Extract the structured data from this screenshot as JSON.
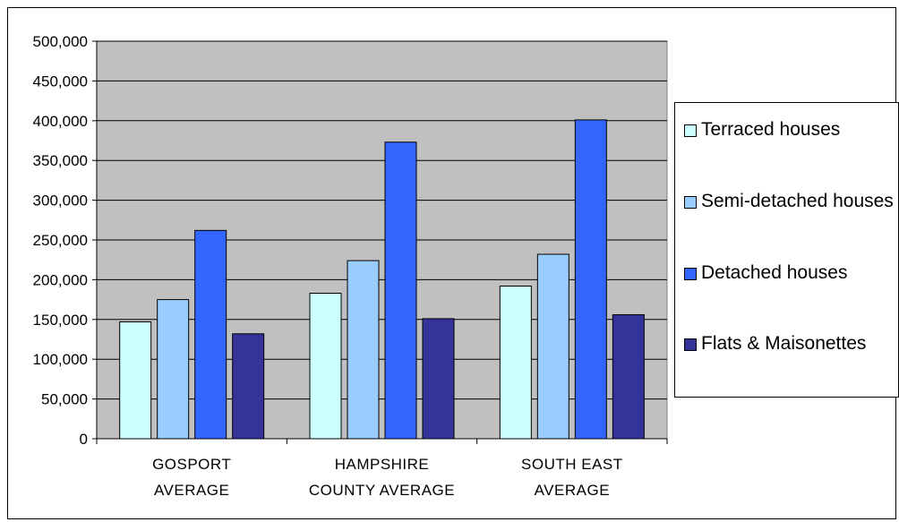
{
  "chart_data": {
    "type": "bar",
    "categories": [
      [
        "GOSPORT",
        "AVERAGE"
      ],
      [
        "HAMPSHIRE",
        "COUNTY AVERAGE"
      ],
      [
        "SOUTH EAST",
        "AVERAGE"
      ]
    ],
    "ylim": [
      0,
      500000
    ],
    "yticks": [
      "0",
      "50,000",
      "100,000",
      "150,000",
      "200,000",
      "250,000",
      "300,000",
      "350,000",
      "400,000",
      "450,000",
      "500,000"
    ],
    "grid": true,
    "legend_position": "right",
    "series": [
      {
        "name": "Terraced houses",
        "color": "#ccffff",
        "values": [
          147000,
          183000,
          192000
        ]
      },
      {
        "name": "Semi-detached houses",
        "color": "#99ccff",
        "values": [
          175000,
          224000,
          232000
        ]
      },
      {
        "name": "Detached houses",
        "color": "#3366ff",
        "values": [
          262000,
          373000,
          401000
        ]
      },
      {
        "name": "Flats & Maisonettes",
        "color": "#333399",
        "values": [
          132000,
          151000,
          156000
        ]
      }
    ],
    "plot_background": "#c0c0c0"
  }
}
